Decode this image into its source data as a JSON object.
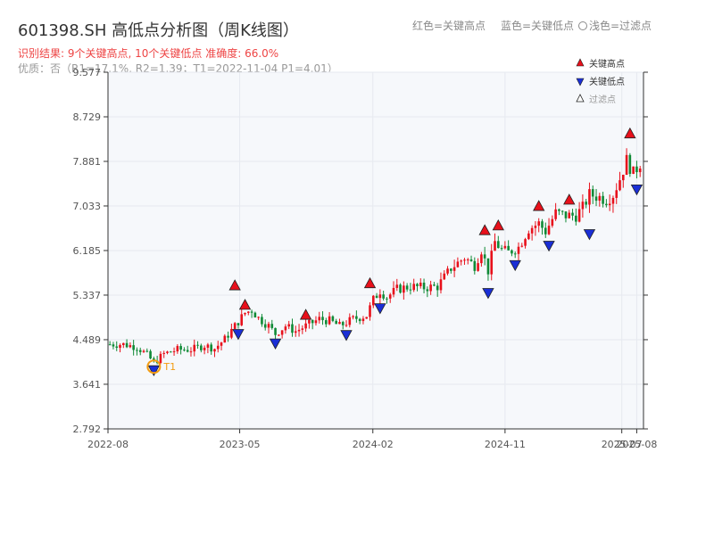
{
  "header": {
    "title": "601398.SH 高低点分析图（周K线图）",
    "subtitle": "识别结果: 9个关键高点, 10个关键低点  准确度: 66.0%",
    "quality_line": "优质：否（R1=17.1%, R2=1.39；T1=2022-11-04 P1=4.01）",
    "legend_red": "红色=关键高点",
    "legend_blue": "蓝色=关键低点",
    "legend_light": "浅色=过滤点"
  },
  "colors": {
    "up": "#e8101b",
    "down": "#0f8a36",
    "high_marker": "#e8101b",
    "low_marker": "#1a2fd6",
    "t1_marker": "#f39c12",
    "plot_bg": "#f6f8fb"
  },
  "chart_data": {
    "type": "candlestick",
    "title": "601398.SH 高低点分析图（周K线图）",
    "ylim": [
      2.792,
      9.577
    ],
    "yticks": [
      "9.577",
      "8.729",
      "7.881",
      "7.033",
      "6.185",
      "5.337",
      "4.489",
      "3.641",
      "2.792"
    ],
    "xlim": [
      "2022-08-01",
      "2025-08-15"
    ],
    "xticks": [
      {
        "date": "2022-08-01",
        "label": "2022-08"
      },
      {
        "date": "2023-05-01",
        "label": "2023-05"
      },
      {
        "date": "2024-02-01",
        "label": "2024-02"
      },
      {
        "date": "2024-11-01",
        "label": "2024-11"
      },
      {
        "date": "2025-07-01",
        "label": "2025-07"
      },
      {
        "date": "2025-08-01",
        "label": "2025-08"
      }
    ],
    "legend": {
      "position": "top-right",
      "items": [
        {
          "label": "关键高点",
          "marker": "triangle-up",
          "color": "#e8101b"
        },
        {
          "label": "关键低点",
          "marker": "triangle-down",
          "color": "#1a2fd6"
        },
        {
          "label": "过滤点",
          "marker": "triangle-up-hollow",
          "color": "#999999"
        }
      ]
    },
    "price_path": [
      [
        "2022-08-05",
        4.4
      ],
      [
        "2022-09-02",
        4.4
      ],
      [
        "2022-09-30",
        4.35
      ],
      [
        "2022-10-21",
        4.2
      ],
      [
        "2022-11-04",
        4.05
      ],
      [
        "2022-11-25",
        4.22
      ],
      [
        "2022-12-23",
        4.3
      ],
      [
        "2023-01-20",
        4.3
      ],
      [
        "2023-02-17",
        4.38
      ],
      [
        "2023-03-10",
        4.32
      ],
      [
        "2023-03-31",
        4.5
      ],
      [
        "2023-04-21",
        4.75
      ],
      [
        "2023-05-12",
        5.0
      ],
      [
        "2023-05-26",
        5.05
      ],
      [
        "2023-06-09",
        4.9
      ],
      [
        "2023-06-30",
        4.75
      ],
      [
        "2023-07-14",
        4.6
      ],
      [
        "2023-08-04",
        4.75
      ],
      [
        "2023-08-25",
        4.65
      ],
      [
        "2023-09-15",
        4.75
      ],
      [
        "2023-10-13",
        4.88
      ],
      [
        "2023-11-03",
        4.85
      ],
      [
        "2023-11-24",
        4.75
      ],
      [
        "2023-12-22",
        4.88
      ],
      [
        "2024-01-19",
        4.95
      ],
      [
        "2024-02-02",
        5.25
      ],
      [
        "2024-02-16",
        5.42
      ],
      [
        "2024-03-01",
        5.3
      ],
      [
        "2024-03-22",
        5.45
      ],
      [
        "2024-04-19",
        5.5
      ],
      [
        "2024-05-17",
        5.48
      ],
      [
        "2024-06-14",
        5.5
      ],
      [
        "2024-07-12",
        5.85
      ],
      [
        "2024-08-09",
        6.05
      ],
      [
        "2024-08-30",
        5.9
      ],
      [
        "2024-09-13",
        6.2
      ],
      [
        "2024-09-27",
        5.8
      ],
      [
        "2024-10-11",
        6.35
      ],
      [
        "2024-10-25",
        6.2
      ],
      [
        "2024-11-08",
        6.15
      ],
      [
        "2024-11-29",
        6.25
      ],
      [
        "2024-12-20",
        6.6
      ],
      [
        "2025-01-10",
        6.7
      ],
      [
        "2025-01-24",
        6.55
      ],
      [
        "2025-02-14",
        6.9
      ],
      [
        "2025-03-07",
        6.85
      ],
      [
        "2025-03-28",
        6.85
      ],
      [
        "2025-04-11",
        7.0
      ],
      [
        "2025-04-25",
        7.25
      ],
      [
        "2025-05-16",
        7.2
      ],
      [
        "2025-05-30",
        7.15
      ],
      [
        "2025-06-13",
        7.25
      ],
      [
        "2025-06-27",
        7.55
      ],
      [
        "2025-07-11",
        7.9
      ],
      [
        "2025-07-25",
        7.65
      ],
      [
        "2025-08-08",
        7.85
      ]
    ],
    "key_highs": [
      {
        "date": "2023-04-21",
        "price": 5.42
      },
      {
        "date": "2023-05-12",
        "price": 5.05
      },
      {
        "date": "2023-09-15",
        "price": 4.86
      },
      {
        "date": "2024-01-26",
        "price": 5.46
      },
      {
        "date": "2024-09-20",
        "price": 6.47
      },
      {
        "date": "2024-10-18",
        "price": 6.56
      },
      {
        "date": "2025-01-10",
        "price": 6.93
      },
      {
        "date": "2025-03-14",
        "price": 7.05
      },
      {
        "date": "2025-07-18",
        "price": 8.31
      }
    ],
    "key_lows": [
      {
        "date": "2022-11-04",
        "price": 4.01
      },
      {
        "date": "2023-04-28",
        "price": 4.7
      },
      {
        "date": "2023-07-14",
        "price": 4.52
      },
      {
        "date": "2023-12-08",
        "price": 4.68
      },
      {
        "date": "2024-02-16",
        "price": 5.19
      },
      {
        "date": "2024-09-27",
        "price": 5.48
      },
      {
        "date": "2024-11-22",
        "price": 6.01
      },
      {
        "date": "2025-01-31",
        "price": 6.38
      },
      {
        "date": "2025-04-25",
        "price": 6.6
      },
      {
        "date": "2025-08-01",
        "price": 7.45
      }
    ],
    "t1_point": {
      "date": "2022-11-04",
      "price": 4.01,
      "label": "T1"
    }
  }
}
